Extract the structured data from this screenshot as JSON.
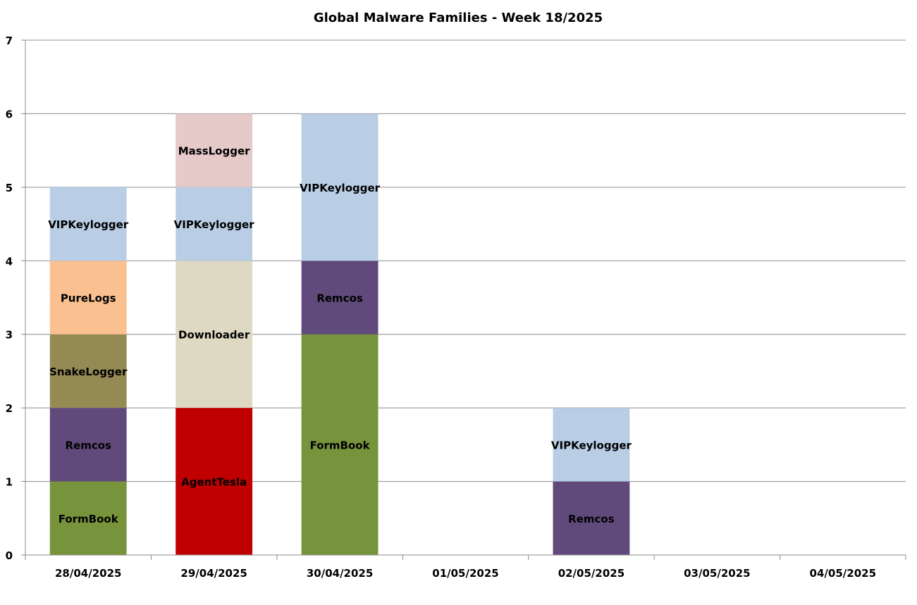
{
  "chart_data": {
    "type": "bar",
    "stacked": true,
    "title": "Global Malware Families - Week 18/2025",
    "xlabel": "",
    "ylabel": "",
    "ylim": [
      0,
      7
    ],
    "yticks": [
      "0",
      "1",
      "2",
      "3",
      "4",
      "5",
      "6",
      "7"
    ],
    "grid": true,
    "legend": "none",
    "categories": [
      "28/04/2025",
      "29/04/2025",
      "30/04/2025",
      "01/05/2025",
      "02/05/2025",
      "03/05/2025",
      "04/05/2025"
    ],
    "colors": {
      "FormBook": "#77933c",
      "Remcos": "#604a7b",
      "SnakeLogger": "#948a54",
      "PureLogs": "#fac090",
      "VIPKeylogger": "#b9cde5",
      "AgentTesla": "#c00000",
      "Downloader": "#ddd9c3",
      "MassLogger": "#e6c9c9"
    },
    "stacks": [
      [
        {
          "name": "FormBook",
          "value": 1
        },
        {
          "name": "Remcos",
          "value": 1
        },
        {
          "name": "SnakeLogger",
          "value": 1
        },
        {
          "name": "PureLogs",
          "value": 1
        },
        {
          "name": "VIPKeylogger",
          "value": 1
        }
      ],
      [
        {
          "name": "AgentTesla",
          "value": 2
        },
        {
          "name": "Downloader",
          "value": 2
        },
        {
          "name": "VIPKeylogger",
          "value": 1
        },
        {
          "name": "MassLogger",
          "value": 1
        }
      ],
      [
        {
          "name": "FormBook",
          "value": 3
        },
        {
          "name": "Remcos",
          "value": 1
        },
        {
          "name": "VIPKeylogger",
          "value": 2
        }
      ],
      [],
      [
        {
          "name": "Remcos",
          "value": 1
        },
        {
          "name": "VIPKeylogger",
          "value": 1
        }
      ],
      [],
      []
    ]
  }
}
